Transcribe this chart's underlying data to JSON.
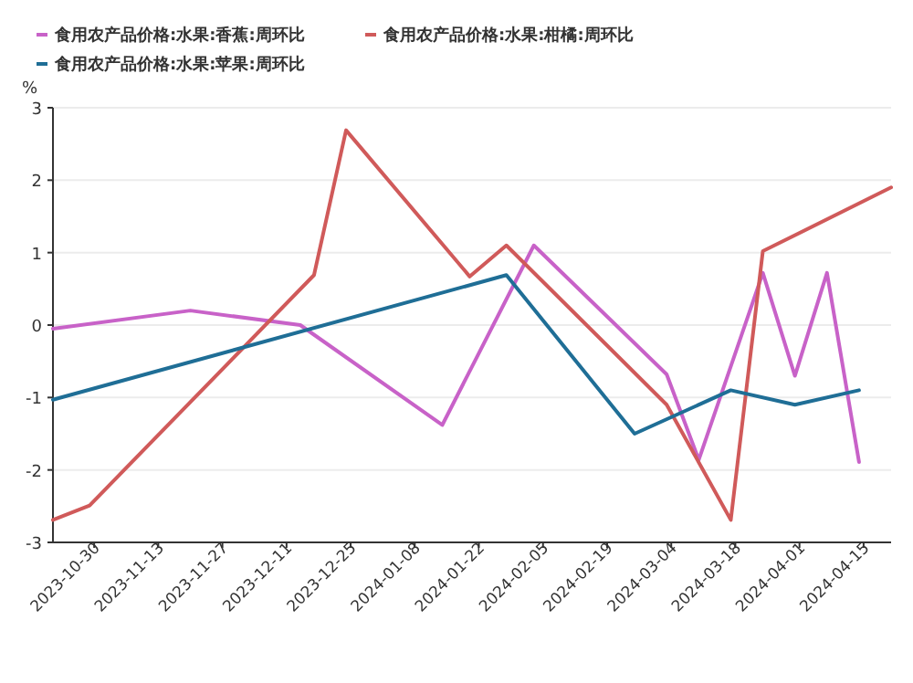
{
  "chart_data": {
    "type": "line",
    "ylabel": "%",
    "legend": "top left",
    "grid": "y",
    "marker": "none",
    "line_style": "solid",
    "xlim": [
      "2023-10-21",
      "2024-04-21"
    ],
    "xticks": [
      "2023-10-30",
      "2023-11-13",
      "2023-11-27",
      "2023-12-11",
      "2023-12-25",
      "2024-01-08",
      "2024-01-22",
      "2024-02-05",
      "2024-02-19",
      "2024-03-04",
      "2024-03-18",
      "2024-04-01",
      "2024-04-15"
    ],
    "ylim": [
      -3,
      3
    ],
    "yticks": [
      -3,
      -2,
      -1,
      0,
      1,
      2,
      3
    ],
    "series": [
      {
        "name": "食用农产品价格:水果:香蕉:周环比",
        "color": "#c862c8",
        "x": [
          "2023-10-21",
          "2023-11-20",
          "2023-12-14",
          "2024-01-14",
          "2024-02-03",
          "2024-03-03",
          "2024-03-10",
          "2024-03-24",
          "2024-03-31",
          "2024-04-07",
          "2024-04-14"
        ],
        "values": [
          -0.05,
          0.2,
          0.0,
          -1.38,
          1.1,
          -0.68,
          -1.86,
          0.72,
          -0.7,
          0.72,
          -1.89
        ]
      },
      {
        "name": "食用农产品价格:水果:柑橘:周环比",
        "color": "#d05a5a",
        "x": [
          "2023-10-21",
          "2023-10-29",
          "2023-12-17",
          "2023-12-24",
          "2024-01-20",
          "2024-01-28",
          "2024-03-03",
          "2024-03-17",
          "2024-03-24",
          "2024-04-21"
        ],
        "values": [
          -2.69,
          -2.49,
          0.69,
          2.69,
          0.67,
          1.1,
          -1.1,
          -2.69,
          1.02,
          1.9
        ]
      },
      {
        "name": "食用农产品价格:水果:苹果:周环比",
        "color": "#1f6e96",
        "x": [
          "2023-10-21",
          "2024-01-28",
          "2024-02-25",
          "2024-03-17",
          "2024-03-31",
          "2024-04-14"
        ],
        "values": [
          -1.03,
          0.69,
          -1.5,
          -0.9,
          -1.1,
          -0.9
        ]
      }
    ]
  }
}
